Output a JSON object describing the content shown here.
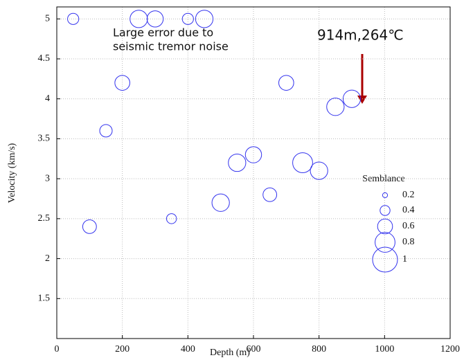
{
  "chart_data": {
    "type": "bubble",
    "xlabel": "Depth (m)",
    "ylabel": "Velocity (km/s)",
    "xlim": [
      0,
      1200
    ],
    "xticks": [
      0,
      200,
      400,
      600,
      800,
      1000,
      1200
    ],
    "ylim": [
      1,
      5.15
    ],
    "yticks": [
      1.5,
      2,
      2.5,
      3,
      3.5,
      4,
      4.5,
      5
    ],
    "grid": true,
    "series": [
      {
        "name": "Semblance",
        "color": "#3333ee",
        "x": [
          50,
          250,
          300,
          400,
          450,
          200,
          150,
          100,
          350,
          500,
          550,
          600,
          650,
          700,
          750,
          800,
          850,
          900
        ],
        "y": [
          5,
          5,
          5,
          5,
          5,
          4.2,
          3.6,
          2.4,
          2.5,
          2.7,
          3.2,
          3.3,
          2.8,
          4.2,
          3.2,
          3.1,
          3.9,
          4.0
        ],
        "sizes": [
          0.45,
          0.7,
          0.65,
          0.45,
          0.7,
          0.6,
          0.5,
          0.55,
          0.4,
          0.7,
          0.7,
          0.65,
          0.55,
          0.6,
          0.8,
          0.7,
          0.7,
          0.7
        ]
      }
    ],
    "legend_title": "Semblance",
    "legend_sizes": [
      0.2,
      0.4,
      0.6,
      0.8,
      1
    ],
    "annotations": [
      {
        "lines": [
          "Large error due to",
          "seismic tremor noise"
        ],
        "color": "#ee2222"
      },
      {
        "lines": [
          "914m,264℃"
        ],
        "color": "#ee2222"
      }
    ]
  }
}
